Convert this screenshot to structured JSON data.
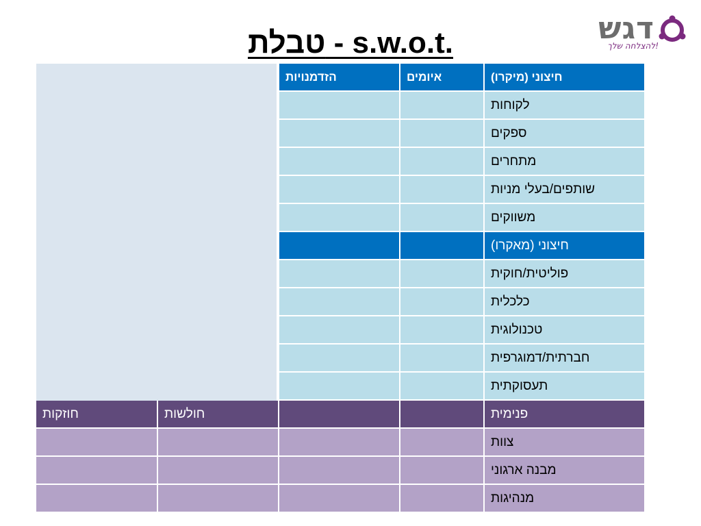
{
  "slide": {
    "title": "טבלת - s.w.o.t.",
    "logo_text": "דגש",
    "logo_tagline": "להצלחה שלך!"
  },
  "table": {
    "external_header": [
      "חיצוני (מיקרו)",
      "איומים",
      "הזדמנויות"
    ],
    "external_micro_rows": [
      "לקוחות",
      "ספקים",
      "מתחרים",
      "שותפים/בעלי מניות",
      "משווקים"
    ],
    "external_macro_header": "חיצוני (מאקרו)",
    "external_macro_rows": [
      "פוליטית/חוקית",
      "כלכלית",
      "טכנולוגית",
      "חברתית/דמוגרפית",
      "תעסוקתית"
    ],
    "internal_header": [
      "פנימית",
      "",
      "",
      "חולשות",
      "חוזקות"
    ],
    "internal_rows": [
      "צוות",
      "מבנה ארגוני",
      "מנהיגות"
    ]
  },
  "colors": {
    "blue_header": "#0070c0",
    "light_blue_cell": "#b9dde9",
    "purple_header": "#604a7b",
    "light_purple_cell": "#b3a2c7",
    "logo_purple": "#7b2a7f"
  }
}
